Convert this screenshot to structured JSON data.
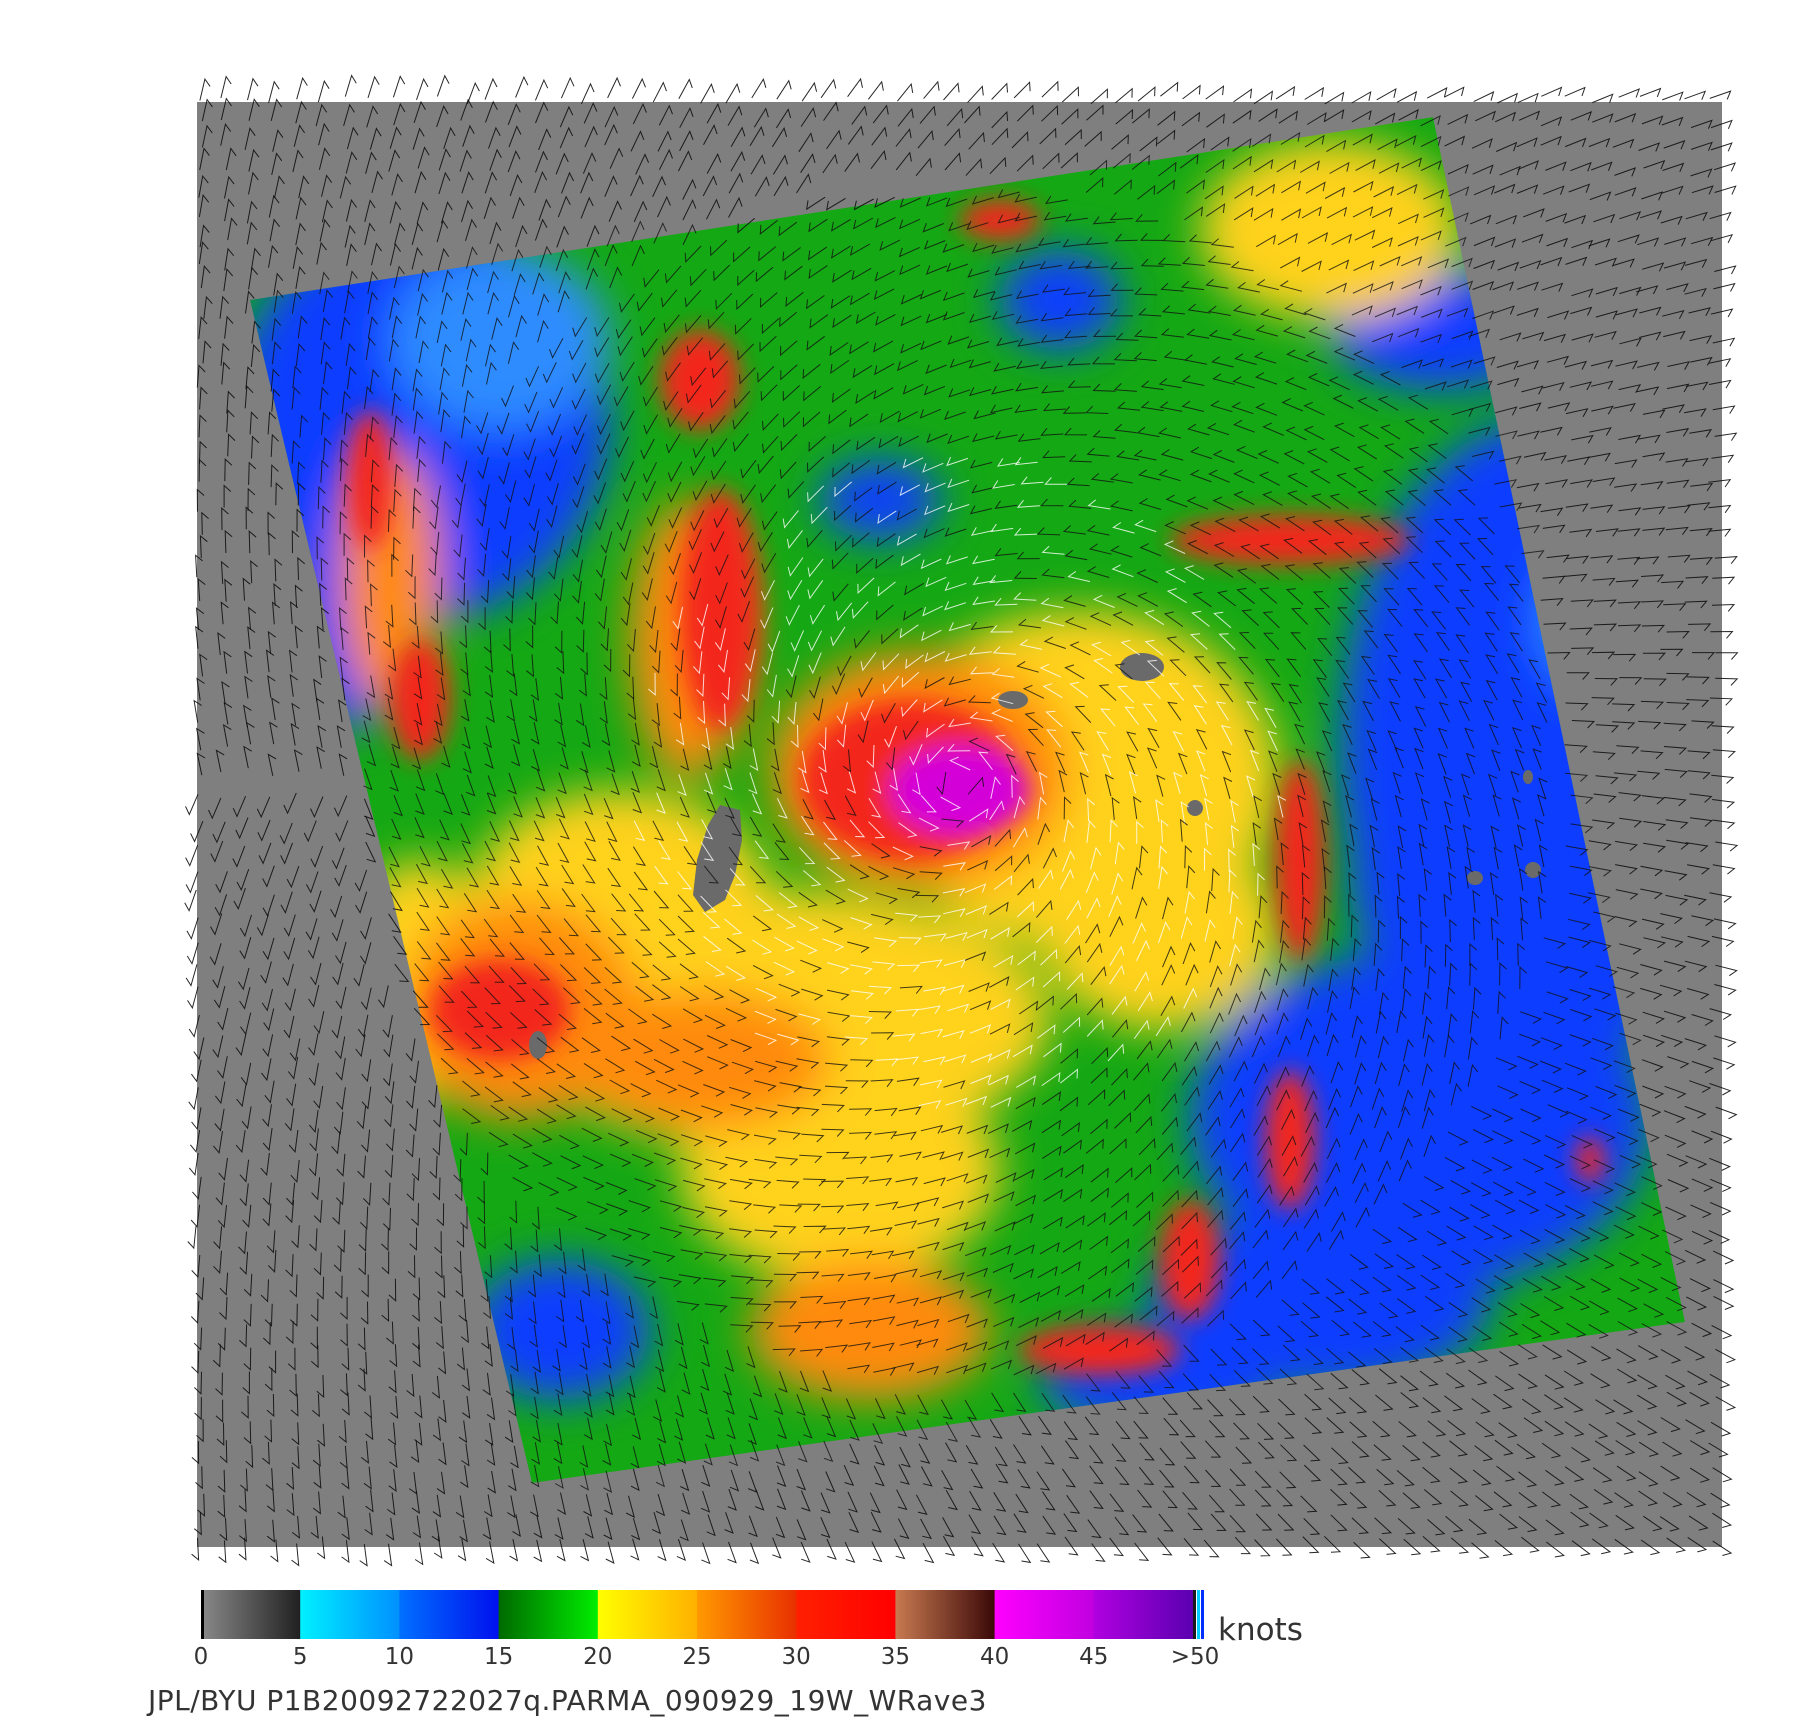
{
  "colorbar": {
    "ticks": [
      "0",
      "5",
      "10",
      "15",
      "20",
      "25",
      "30",
      "35",
      "40",
      "45",
      ">50"
    ],
    "units": "knots",
    "stops": [
      {
        "from": 0,
        "to": 5,
        "c1": "#8a8a8a",
        "c2": "#202020"
      },
      {
        "from": 5,
        "to": 10,
        "c1": "#00f0ff",
        "c2": "#0090ff"
      },
      {
        "from": 10,
        "to": 15,
        "c1": "#0070ff",
        "c2": "#0010ee"
      },
      {
        "from": 15,
        "to": 20,
        "c1": "#006a00",
        "c2": "#00ee00"
      },
      {
        "from": 20,
        "to": 25,
        "c1": "#ffff00",
        "c2": "#ffb000"
      },
      {
        "from": 25,
        "to": 30,
        "c1": "#ff9a00",
        "c2": "#e83000"
      },
      {
        "from": 30,
        "to": 35,
        "c1": "#ff2000",
        "c2": "#ff0000"
      },
      {
        "from": 35,
        "to": 40,
        "c1": "#c87a50",
        "c2": "#3a0808"
      },
      {
        "from": 40,
        "to": 45,
        "c1": "#ff00ff",
        "c2": "#c000e0"
      },
      {
        "from": 45,
        "to": 50,
        "c1": "#b000e0",
        "c2": "#5a00b0"
      }
    ]
  },
  "caption": "JPL/BYU  P1B20092722027q.PARMA_090929_19W_WRave3",
  "colors": {
    "no_data": "#7f7f7f",
    "low": "#0a3cff",
    "low_light": "#2f8cff",
    "moderate": "#15b515",
    "fresh": "#ffd21a",
    "strong": "#ff8a10",
    "gale": "#f3281a",
    "storm": "#d400d8",
    "land": "#6a6a6a",
    "barb_dark": "#111111",
    "barb_light": "#ffffff"
  }
}
